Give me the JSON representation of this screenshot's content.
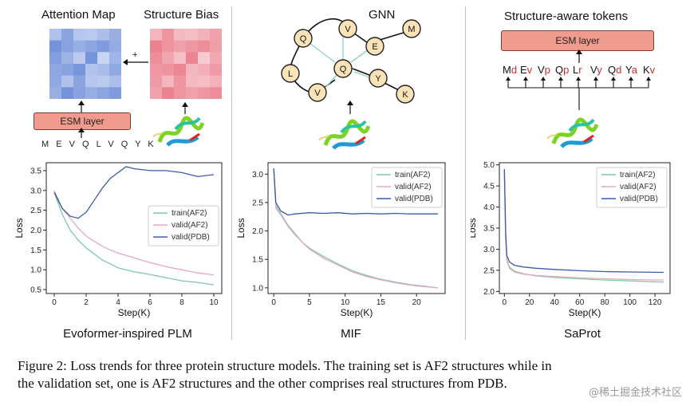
{
  "panels": [
    {
      "top_labels": {
        "attention": "Attention Map",
        "bias": "Structure Bias",
        "plus": "+"
      },
      "esm_label": "ESM layer",
      "sequence": "M E V Q L V Q Y K",
      "title": "Evoformer-inspired PLM"
    },
    {
      "top_label": "GNN",
      "nodes": [
        "Q",
        "V",
        "E",
        "M",
        "L",
        "Q",
        "Y",
        "V",
        "K"
      ],
      "title": "MIF"
    },
    {
      "top_label": "Structure-aware tokens",
      "esm_label": "ESM layer",
      "tokens": [
        {
          "aa": "M",
          "ss": "d"
        },
        {
          "aa": "E",
          "ss": "v"
        },
        {
          "aa": "V",
          "ss": "p"
        },
        {
          "aa": "Q",
          "ss": "p"
        },
        {
          "aa": "L",
          "ss": "r"
        },
        {
          "aa": "V",
          "ss": "y"
        },
        {
          "aa": "Q",
          "ss": "d"
        },
        {
          "aa": "Y",
          "ss": "a"
        },
        {
          "aa": "K",
          "ss": "v"
        }
      ],
      "title": "SaProt"
    }
  ],
  "colors": {
    "train_af2": "#7ec9a6",
    "valid_af2": "#e8a8b8",
    "valid_pdb": "#3b5ba8",
    "esm_fill": "#f19a8e",
    "token_red": "#d62728",
    "node_fill": "#fbe3b8"
  },
  "chart_data": [
    {
      "type": "line",
      "xlabel": "Step(K)",
      "ylabel": "Loss",
      "xlim": [
        -0.5,
        10.5
      ],
      "ylim": [
        0.4,
        3.7
      ],
      "xticks": [
        0,
        2,
        4,
        6,
        8,
        10
      ],
      "yticks": [
        0.5,
        1.0,
        1.5,
        2.0,
        2.5,
        3.0,
        3.5
      ],
      "legend": "center-right",
      "series": [
        {
          "name": "train(AF2)",
          "key": "train_af2",
          "x": [
            0,
            0.5,
            1,
            1.5,
            2,
            2.5,
            3,
            3.5,
            4,
            5,
            6,
            7,
            8,
            9,
            10
          ],
          "y": [
            2.95,
            2.4,
            2.0,
            1.75,
            1.55,
            1.4,
            1.25,
            1.15,
            1.05,
            0.95,
            0.88,
            0.8,
            0.72,
            0.68,
            0.62
          ]
        },
        {
          "name": "valid(AF2)",
          "key": "valid_af2",
          "x": [
            0,
            0.5,
            1,
            1.5,
            2,
            2.5,
            3,
            3.5,
            4,
            5,
            6,
            7,
            8,
            9,
            10
          ],
          "y": [
            3.0,
            2.55,
            2.3,
            2.05,
            1.85,
            1.72,
            1.6,
            1.5,
            1.42,
            1.3,
            1.18,
            1.08,
            1.0,
            0.92,
            0.87
          ]
        },
        {
          "name": "valid(PDB)",
          "key": "valid_pdb",
          "x": [
            0,
            0.5,
            1,
            1.5,
            2,
            2.5,
            3,
            3.5,
            4,
            4.5,
            5,
            6,
            7,
            8,
            9,
            10
          ],
          "y": [
            2.95,
            2.55,
            2.35,
            2.3,
            2.45,
            2.75,
            3.05,
            3.3,
            3.45,
            3.6,
            3.55,
            3.5,
            3.5,
            3.45,
            3.35,
            3.4
          ]
        }
      ]
    },
    {
      "type": "line",
      "xlabel": "Step(K)",
      "ylabel": "Loss",
      "xlim": [
        -0.8,
        24
      ],
      "ylim": [
        0.9,
        3.2
      ],
      "xticks": [
        0,
        5,
        10,
        15,
        20
      ],
      "yticks": [
        1.0,
        1.5,
        2.0,
        2.5,
        3.0
      ],
      "legend": "top-right",
      "series": [
        {
          "name": "train(AF2)",
          "key": "train_af2",
          "x": [
            0,
            0.3,
            1,
            2,
            3,
            4,
            5,
            7,
            9,
            11,
            13,
            15,
            17,
            19,
            21,
            23
          ],
          "y": [
            3.1,
            2.45,
            2.3,
            2.1,
            1.95,
            1.8,
            1.7,
            1.55,
            1.42,
            1.3,
            1.22,
            1.15,
            1.1,
            1.06,
            1.03,
            1.0
          ]
        },
        {
          "name": "valid(AF2)",
          "key": "valid_af2",
          "x": [
            0,
            0.3,
            1,
            2,
            3,
            4,
            5,
            7,
            9,
            11,
            13,
            15,
            17,
            19,
            21,
            23
          ],
          "y": [
            3.05,
            2.4,
            2.28,
            2.08,
            1.93,
            1.8,
            1.68,
            1.52,
            1.4,
            1.28,
            1.2,
            1.14,
            1.09,
            1.05,
            1.02,
            1.0
          ]
        },
        {
          "name": "valid(PDB)",
          "key": "valid_pdb",
          "x": [
            0,
            0.3,
            1,
            2,
            3,
            5,
            7,
            9,
            11,
            13,
            15,
            17,
            19,
            21,
            23
          ],
          "y": [
            3.1,
            2.5,
            2.35,
            2.28,
            2.3,
            2.32,
            2.31,
            2.32,
            2.3,
            2.31,
            2.3,
            2.31,
            2.3,
            2.3,
            2.3
          ]
        }
      ]
    },
    {
      "type": "line",
      "xlabel": "Step(K)",
      "ylabel": "Loss",
      "xlim": [
        -4,
        132
      ],
      "ylim": [
        1.95,
        5.05
      ],
      "xticks": [
        0,
        20,
        40,
        60,
        80,
        100,
        120
      ],
      "yticks": [
        2.0,
        2.5,
        3.0,
        3.5,
        4.0,
        4.5,
        5.0
      ],
      "legend": "top-right",
      "series": [
        {
          "name": "train(AF2)",
          "key": "train_af2",
          "x": [
            0,
            1,
            2,
            4,
            8,
            15,
            25,
            40,
            60,
            80,
            100,
            127
          ],
          "y": [
            4.85,
            3.3,
            2.75,
            2.58,
            2.48,
            2.42,
            2.37,
            2.33,
            2.3,
            2.27,
            2.25,
            2.22
          ]
        },
        {
          "name": "valid(AF2)",
          "key": "valid_af2",
          "x": [
            0,
            1,
            2,
            4,
            8,
            15,
            25,
            40,
            60,
            80,
            100,
            127
          ],
          "y": [
            4.8,
            3.2,
            2.72,
            2.55,
            2.46,
            2.41,
            2.38,
            2.35,
            2.32,
            2.3,
            2.28,
            2.27
          ]
        },
        {
          "name": "valid(PDB)",
          "key": "valid_pdb",
          "x": [
            0,
            1,
            2,
            4,
            8,
            15,
            25,
            40,
            60,
            80,
            100,
            127
          ],
          "y": [
            4.9,
            3.4,
            2.85,
            2.7,
            2.62,
            2.58,
            2.55,
            2.52,
            2.49,
            2.47,
            2.46,
            2.45
          ]
        }
      ]
    }
  ],
  "caption": {
    "line1": "Figure 2: Loss trends for three protein structure models. The training set is AF2 structures while in",
    "line2": "the validation set, one is AF2 structures and the other comprises real structures from PDB."
  },
  "watermark": "@稀土掘金技术社区"
}
